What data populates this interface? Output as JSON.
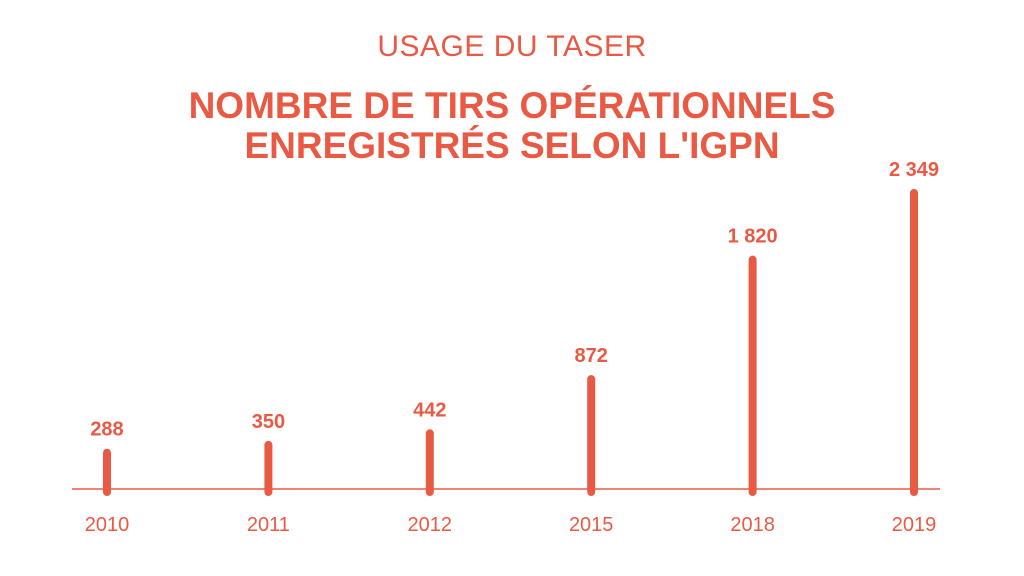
{
  "colors": {
    "accent": "#e95a44",
    "background": "#ffffff"
  },
  "header": {
    "subtitle": "USAGE DU TASER",
    "title_line1": "NOMBRE DE TIRS OPÉRATIONNELS",
    "title_line2": "ENREGISTRÉS SELON L'IGPN"
  },
  "chart_data": {
    "type": "bar",
    "title": "NOMBRE DE TIRS OPÉRATIONNELS ENREGISTRÉS SELON L'IGPN",
    "subtitle": "USAGE DU TASER",
    "categories": [
      "2010",
      "2011",
      "2012",
      "2015",
      "2018",
      "2019"
    ],
    "values": [
      288,
      350,
      442,
      872,
      1820,
      2349
    ],
    "value_labels": [
      "288",
      "350",
      "442",
      "872",
      "1 820",
      "2 349"
    ],
    "xlabel": "",
    "ylabel": "",
    "ylim": [
      0,
      2349
    ],
    "grid": false,
    "legend": "none"
  }
}
